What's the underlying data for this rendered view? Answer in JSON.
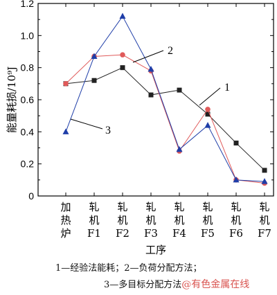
{
  "chart_data": {
    "type": "line",
    "categories": [
      "加\n热\n炉",
      "轧\n机\nF1",
      "轧\n机\nF2",
      "轧\n机\nF3",
      "轧\n机\nF4",
      "轧\n机\nF5",
      "轧\n机\nF6",
      "轧\n机\nF7"
    ],
    "series": [
      {
        "name": "1",
        "marker": "square",
        "color": "#222222",
        "values": [
          0.7,
          0.72,
          0.8,
          0.63,
          0.66,
          0.51,
          0.33,
          0.16
        ]
      },
      {
        "name": "2",
        "marker": "circle",
        "color": "#e05a5a",
        "values": [
          0.7,
          0.87,
          0.88,
          0.78,
          0.28,
          0.54,
          0.1,
          0.08
        ]
      },
      {
        "name": "3",
        "marker": "triangle",
        "color": "#1f3ea8",
        "values": [
          0.4,
          0.87,
          1.12,
          0.79,
          0.29,
          0.44,
          0.1,
          0.09
        ]
      }
    ],
    "xlabel": "工序",
    "ylabel": "能量耗损/10⁹J",
    "ylim": [
      0,
      1.2
    ],
    "yticks": [
      "0",
      "0.2",
      "0.4",
      "0.6",
      "0.8",
      "1.0",
      "1.2"
    ],
    "grid": false
  },
  "legend": {
    "line1": "1—经验法能耗；2—负荷分配方法；",
    "line2": "3—多目标分配方法",
    "watermark": "@有色金属在线"
  }
}
